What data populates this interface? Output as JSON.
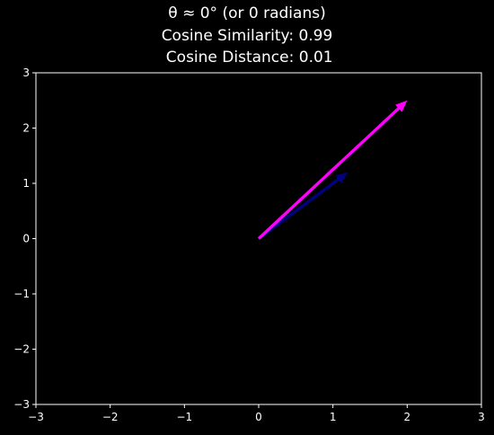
{
  "chart_data": {
    "type": "quiver",
    "title_lines": [
      "θ ≈ 0° (or 0 radians)",
      "Cosine Similarity: 0.99",
      " Cosine Distance: 0.01"
    ],
    "xlabel": "",
    "ylabel": "",
    "xlim": [
      -3,
      3
    ],
    "ylim": [
      -3,
      3
    ],
    "xticks": [
      -3,
      -2,
      -1,
      0,
      1,
      2,
      3
    ],
    "yticks": [
      -3,
      -2,
      -1,
      0,
      1,
      2,
      3
    ],
    "xtick_labels": [
      "−3",
      "−2",
      "−1",
      "0",
      "1",
      "2",
      "3"
    ],
    "ytick_labels": [
      "−3",
      "−2",
      "−1",
      "0",
      "1",
      "2",
      "3"
    ],
    "grid": false,
    "background": "#000000",
    "axis_color": "#ffffff",
    "vectors": [
      {
        "origin": [
          0,
          0
        ],
        "components": [
          1.2,
          1.2
        ],
        "color": "#000080"
      },
      {
        "origin": [
          0,
          0
        ],
        "components": [
          2.0,
          2.5
        ],
        "color": "#ff00ff"
      }
    ]
  }
}
